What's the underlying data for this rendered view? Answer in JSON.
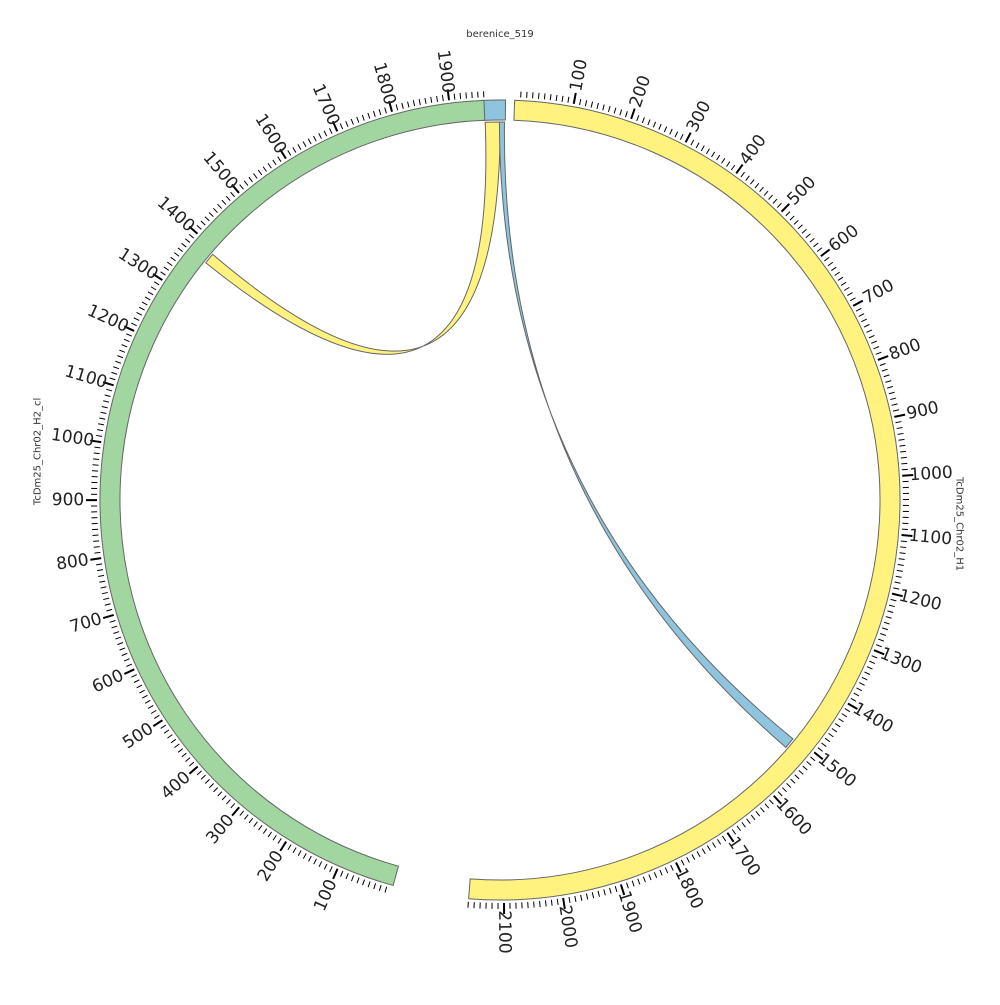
{
  "diagram": {
    "type": "circos",
    "chromosomes": [
      {
        "id": "berenice",
        "name": "berenice_519",
        "length": 519,
        "color": "#8ec4dd",
        "tick_labels": []
      },
      {
        "id": "h1",
        "name": "TcDm25_Chr02_H1",
        "length": 2160,
        "color": "#fff27f",
        "tick_labels": [
          "100",
          "200",
          "300",
          "400",
          "500",
          "600",
          "700",
          "800",
          "900",
          "1000",
          "1100",
          "1200",
          "1300",
          "1400",
          "1500",
          "1600",
          "1700",
          "1800",
          "1900",
          "2000",
          "2100"
        ]
      },
      {
        "id": "h2",
        "name": "TcDm25_Chr02_H2_cl",
        "length": 1960,
        "color": "#a1d6a0",
        "tick_labels": [
          "100",
          "200",
          "300",
          "400",
          "500",
          "600",
          "700",
          "800",
          "900",
          "1000",
          "1100",
          "1200",
          "1300",
          "1400",
          "1500",
          "1600",
          "1700",
          "1800",
          "1900"
        ]
      }
    ],
    "links": [
      {
        "from": "berenice",
        "from_start": 40,
        "from_end": 400,
        "to": "h2",
        "to_start": 1370,
        "to_end": 1390,
        "color": "#fff27f"
      },
      {
        "from": "berenice",
        "from_start": 380,
        "from_end": 500,
        "to": "h1",
        "to_start": 1505,
        "to_end": 1525,
        "color": "#8ec4dd"
      }
    ]
  }
}
